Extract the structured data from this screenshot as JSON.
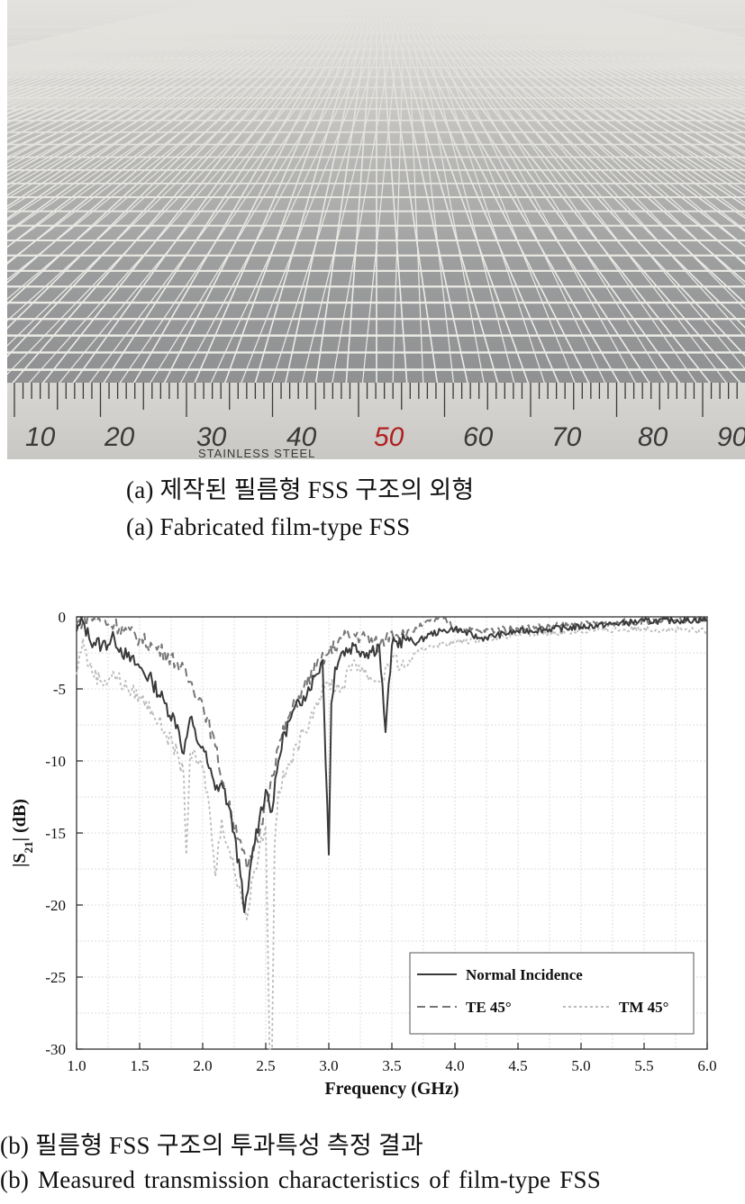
{
  "figure_a": {
    "ruler_numbers": [
      "10",
      "20",
      "30",
      "40",
      "50",
      "60",
      "70",
      "80",
      "90"
    ],
    "ruler_highlight": "50",
    "ruler_brand": "STAINLESS STEEL",
    "caption_ko": "(a) 제작된 필름형 FSS 구조의 외형",
    "caption_en": "(a) Fabricated film-type FSS"
  },
  "figure_b": {
    "caption_ko": "(b) 필름형 FSS 구조의 투과특성 측정 결과",
    "caption_en": "(b) Measured transmission characteristics of film-type FSS"
  },
  "chart_data": {
    "type": "line",
    "xlabel": "Frequency (GHz)",
    "ylabel_main": "|S",
    "ylabel_sub": "21",
    "ylabel_tail": "| (dB)",
    "xlim": [
      1.0,
      6.0
    ],
    "ylim": [
      -30,
      0
    ],
    "xticks": [
      "1.0",
      "1.5",
      "2.0",
      "2.5",
      "3.0",
      "3.5",
      "4.0",
      "4.5",
      "5.0",
      "5.5",
      "6.0"
    ],
    "yticks": [
      "0",
      "-5",
      "-10",
      "-15",
      "-20",
      "-25",
      "-30"
    ],
    "grid": true,
    "legend_position": "bottom-right",
    "series": [
      {
        "name": "Normal Incidence",
        "style": "solid",
        "color": "#3a3a3a",
        "x": [
          1.0,
          1.05,
          1.1,
          1.2,
          1.3,
          1.4,
          1.5,
          1.6,
          1.7,
          1.8,
          1.85,
          1.9,
          1.95,
          2.0,
          2.05,
          2.1,
          2.15,
          2.2,
          2.25,
          2.3,
          2.33,
          2.36,
          2.4,
          2.45,
          2.5,
          2.55,
          2.6,
          2.65,
          2.7,
          2.8,
          2.9,
          2.95,
          3.0,
          3.02,
          3.05,
          3.1,
          3.2,
          3.3,
          3.4,
          3.45,
          3.5,
          3.6,
          3.7,
          3.8,
          3.9,
          4.0,
          4.2,
          4.5,
          5.0,
          5.5,
          6.0
        ],
        "y": [
          -1.0,
          -0.3,
          -1.5,
          -2.0,
          -1.5,
          -2.8,
          -3.5,
          -4.5,
          -6.0,
          -7.5,
          -9.5,
          -7.0,
          -8.5,
          -9.0,
          -10.5,
          -12.0,
          -11.5,
          -13.0,
          -15.0,
          -18.0,
          -20.5,
          -19.0,
          -16.0,
          -14.0,
          -12.0,
          -13.5,
          -10.0,
          -8.0,
          -7.0,
          -5.5,
          -4.0,
          -3.0,
          -16.5,
          -6.0,
          -3.5,
          -2.5,
          -2.0,
          -2.5,
          -2.0,
          -8.0,
          -2.0,
          -1.5,
          -1.8,
          -1.2,
          -1.0,
          -0.8,
          -1.5,
          -1.0,
          -0.7,
          -0.3,
          -0.2
        ]
      },
      {
        "name": "TE 45°",
        "style": "dashed",
        "color": "#777777",
        "x": [
          1.0,
          1.1,
          1.2,
          1.3,
          1.4,
          1.5,
          1.6,
          1.7,
          1.8,
          1.9,
          2.0,
          2.1,
          2.2,
          2.3,
          2.35,
          2.4,
          2.45,
          2.5,
          2.55,
          2.6,
          2.7,
          2.8,
          2.9,
          3.0,
          3.1,
          3.2,
          3.3,
          3.4,
          3.5,
          3.6,
          3.7,
          3.8,
          3.9,
          4.0,
          4.2,
          4.5,
          5.0,
          5.5,
          6.0
        ],
        "y": [
          -0.5,
          0.0,
          -0.3,
          -0.5,
          -1.0,
          -1.5,
          -2.0,
          -2.5,
          -3.2,
          -4.5,
          -6.0,
          -9.0,
          -13.0,
          -15.5,
          -17.5,
          -16.5,
          -15.0,
          -13.0,
          -11.0,
          -9.0,
          -6.5,
          -5.0,
          -3.5,
          -2.5,
          -1.5,
          -1.2,
          -1.5,
          -2.0,
          -1.0,
          -1.2,
          -0.8,
          -0.3,
          -0.1,
          -0.8,
          -1.0,
          -0.8,
          -0.5,
          -0.3,
          -0.2
        ]
      },
      {
        "name": "TM 45°",
        "style": "dotted",
        "color": "#bbbbbb",
        "x": [
          1.0,
          1.05,
          1.1,
          1.2,
          1.3,
          1.4,
          1.5,
          1.6,
          1.7,
          1.8,
          1.85,
          1.87,
          1.9,
          2.0,
          2.05,
          2.1,
          2.15,
          2.2,
          2.3,
          2.35,
          2.4,
          2.45,
          2.5,
          2.53,
          2.55,
          2.57,
          2.6,
          2.7,
          2.8,
          2.9,
          3.0,
          3.1,
          3.2,
          3.3,
          3.4,
          3.5,
          3.6,
          3.7,
          3.8,
          4.0,
          4.2,
          4.5,
          5.0,
          5.5,
          6.0
        ],
        "y": [
          -4.0,
          -1.5,
          -3.5,
          -4.5,
          -4.0,
          -5.0,
          -5.5,
          -6.5,
          -8.0,
          -9.5,
          -11.0,
          -16.5,
          -9.5,
          -10.5,
          -13.0,
          -18.0,
          -14.0,
          -16.0,
          -19.0,
          -21.0,
          -18.0,
          -16.0,
          -14.5,
          -30.0,
          -30.0,
          -16.0,
          -12.0,
          -10.0,
          -8.0,
          -6.0,
          -4.5,
          -5.0,
          -3.0,
          -4.0,
          -4.5,
          -3.0,
          -3.5,
          -2.5,
          -2.0,
          -1.8,
          -1.5,
          -1.2,
          -1.0,
          -0.8,
          -1.0
        ]
      }
    ]
  }
}
